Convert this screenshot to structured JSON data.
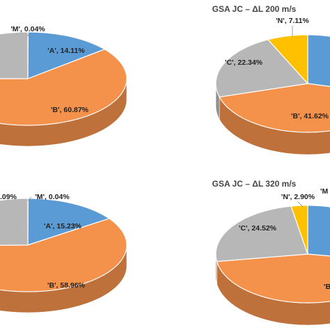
{
  "chart_data": [
    {
      "type": "pie",
      "values": [
        0.04,
        14.11,
        60.87,
        24.98
      ],
      "value_labels": [
        "'M', 0.04%",
        "'A', 14.11%",
        "'B', 60.87%",
        null
      ],
      "colors": [
        "#4472c4",
        "#5b9bd5",
        "#f4914a",
        "#b7b7b7"
      ]
    },
    {
      "type": "pie",
      "title": "GSA JC – ΔL 200 m/s",
      "values": [
        28.93,
        41.62,
        22.34,
        7.11
      ],
      "value_labels": [
        null,
        "'B', 41.62%",
        "'C', 22.34%",
        "'N', 7.11%"
      ],
      "colors": [
        "#5b9bd5",
        "#f4914a",
        "#b7b7b7",
        "#ffc000"
      ]
    },
    {
      "type": "pie",
      "values": [
        0.04,
        15.23,
        58.96,
        25.09
      ],
      "value_labels": [
        "'M', 0.04%",
        "'A', 15.23%",
        "'B', 58.96%",
        ".09%"
      ],
      "colors": [
        "#4472c4",
        "#5b9bd5",
        "#f4914a",
        "#b7b7b7"
      ]
    },
    {
      "type": "pie",
      "title": "GSA JC – ΔL 320 m/s",
      "values": [
        27.58,
        45.0,
        24.52,
        2.9
      ],
      "value_labels": [
        "'M",
        "'B'",
        "'C', 24.52%",
        "'N', 2.90%"
      ],
      "colors": [
        "#5b9bd5",
        "#f4914a",
        "#b7b7b7",
        "#ffc000"
      ]
    }
  ]
}
